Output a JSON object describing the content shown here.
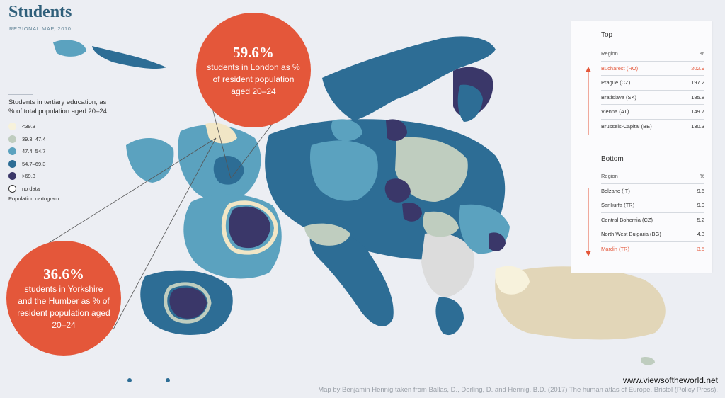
{
  "title": "Students",
  "subtitle": "REGIONAL MAP, 2010",
  "legend": {
    "title": "Students in tertiary education, as % of total population aged 20–24",
    "items": [
      {
        "label": "<39.3",
        "color": "#f7f2dc"
      },
      {
        "label": "39.3–47.4",
        "color": "#bfcdbf"
      },
      {
        "label": "47.4–54.7",
        "color": "#5ba2bf"
      },
      {
        "label": "54.7–69.3",
        "color": "#2d6d95"
      },
      {
        "label": ">69.3",
        "color": "#3a3769"
      },
      {
        "label": "no data",
        "color": "#ffffff"
      }
    ],
    "note": "Population cartogram"
  },
  "callouts": {
    "london": {
      "value": "59.6%",
      "text": "students in London as % of resident population aged 20–24"
    },
    "yorkshire": {
      "value": "36.6%",
      "text": "students in Yorkshire and the Humber as % of resident population aged 20–24"
    }
  },
  "panel": {
    "top": {
      "title": "Top",
      "col_region": "Region",
      "col_pct": "%",
      "rows": [
        {
          "region": "Bucharest (RO)",
          "value": "202.9",
          "highlight": true
        },
        {
          "region": "Prague (CZ)",
          "value": "197.2"
        },
        {
          "region": "Bratislava (SK)",
          "value": "185.8"
        },
        {
          "region": "Vienna (AT)",
          "value": "149.7"
        },
        {
          "region": "Brussels-Capital (BE)",
          "value": "130.3"
        }
      ]
    },
    "bottom": {
      "title": "Bottom",
      "col_region": "Region",
      "col_pct": "%",
      "rows": [
        {
          "region": "Bolzano (IT)",
          "value": "9.6"
        },
        {
          "region": "Şanlıurfa (TR)",
          "value": "9.0"
        },
        {
          "region": "Central Bohemia (CZ)",
          "value": "5.2"
        },
        {
          "region": "North West Bulgaria (BG)",
          "value": "4.3"
        },
        {
          "region": "Mardin (TR)",
          "value": "3.5",
          "highlight": true
        }
      ]
    }
  },
  "footer": {
    "site": "www.viewsoftheworld.net",
    "credit": "Map by Benjamin Hennig taken from Ballas, D., Dorling, D. and Hennig, B.D. (2017) The human atlas of Europe. Bristol (Policy Press)."
  },
  "colors": {
    "accent": "#e4573a",
    "title": "#2f5f7a",
    "class_1": "#f7f2dc",
    "class_2": "#bfcdbf",
    "class_3": "#5ba2bf",
    "class_4": "#2d6d95",
    "class_5": "#3a3769",
    "no_data": "#dcdcdc"
  }
}
